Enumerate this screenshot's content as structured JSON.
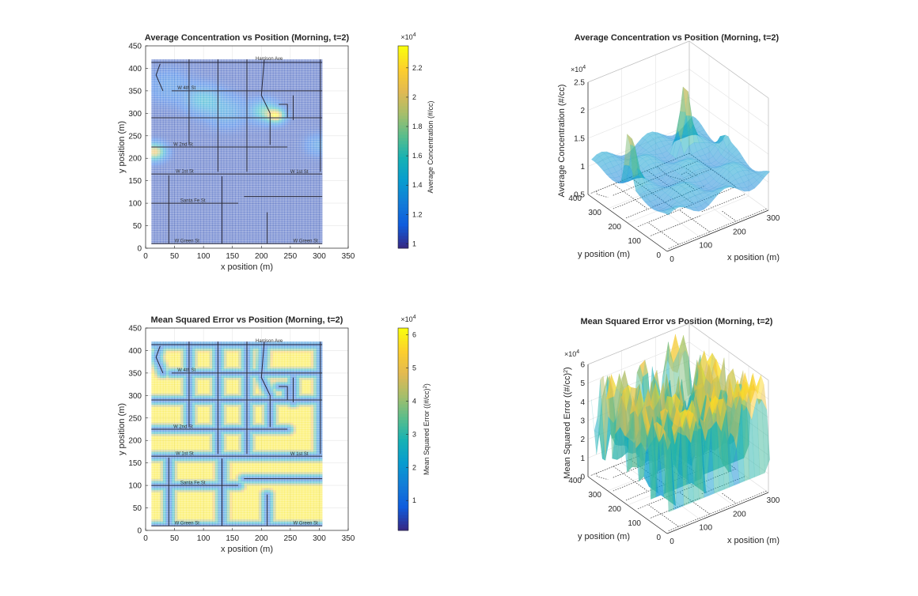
{
  "figure": {
    "background": "#ffffff"
  },
  "chart_data": [
    {
      "type": "heatmap",
      "id": "avg-heatmap",
      "title": "Average Concentration vs Position (Morning, t=2)",
      "xlabel": "x position (m)",
      "ylabel": "y position (m)",
      "xlim": [
        0,
        350
      ],
      "ylim": [
        0,
        450
      ],
      "xticks": [
        "0",
        "50",
        "100",
        "150",
        "200",
        "250",
        "300",
        "350"
      ],
      "yticks": [
        "0",
        "50",
        "100",
        "150",
        "200",
        "250",
        "300",
        "350",
        "400",
        "450"
      ],
      "colorbar": {
        "label": "Average Concentration (#/cc)",
        "multiplier": "×10",
        "multiplier_exp": "4",
        "range": [
          0.97,
          2.35
        ],
        "ticks": [
          "1",
          "1.2",
          "1.4",
          "1.6",
          "1.8",
          "2",
          "2.2"
        ],
        "tick_values": [
          1.0,
          1.2,
          1.4,
          1.6,
          1.8,
          2.0,
          2.2
        ]
      },
      "map_extent": {
        "x": [
          10,
          305
        ],
        "y": [
          10,
          420
        ]
      },
      "base_value": 1.05,
      "hotspots": [
        {
          "x": 225,
          "y": 295,
          "value": 2.2,
          "spread": 10
        },
        {
          "x": 205,
          "y": 305,
          "value": 1.65,
          "spread": 15
        },
        {
          "x": 15,
          "y": 215,
          "value": 2.1,
          "spread": 12
        },
        {
          "x": 100,
          "y": 330,
          "value": 1.45,
          "spread": 20
        },
        {
          "x": 140,
          "y": 305,
          "value": 1.3,
          "spread": 22
        },
        {
          "x": 40,
          "y": 360,
          "value": 1.2,
          "spread": 25
        },
        {
          "x": 300,
          "y": 230,
          "value": 1.25,
          "spread": 15
        }
      ],
      "street_labels": [
        "Harrison Ave",
        "W 4th St",
        "W 2nd St",
        "W 1st St",
        "W 1st St",
        "Santa Fe St",
        "W Green St",
        "W Green St"
      ]
    },
    {
      "type": "heatmap",
      "id": "mse-heatmap",
      "title": "Mean Squared Error vs Position (Morning, t=2)",
      "xlabel": "x position (m)",
      "ylabel": "y position (m)",
      "xlim": [
        0,
        350
      ],
      "ylim": [
        0,
        450
      ],
      "xticks": [
        "0",
        "50",
        "100",
        "150",
        "200",
        "250",
        "300",
        "350"
      ],
      "yticks": [
        "0",
        "50",
        "100",
        "150",
        "200",
        "250",
        "300",
        "350",
        "400",
        "450"
      ],
      "colorbar": {
        "label": "Mean Squared Error ((#/cc)",
        "label_sup": "2",
        "label_end": ")",
        "multiplier": "×10",
        "multiplier_exp": "4",
        "range": [
          0.1,
          6.2
        ],
        "ticks": [
          "1",
          "2",
          "3",
          "4",
          "5",
          "6"
        ],
        "tick_values": [
          1,
          2,
          3,
          4,
          5,
          6
        ]
      },
      "map_extent": {
        "x": [
          10,
          305
        ],
        "y": [
          10,
          420
        ]
      },
      "high_value": 5.9,
      "road_value": 1.0,
      "street_labels": [
        "Harrison Ave",
        "W 4th St",
        "W 2nd St",
        "W 1st St",
        "W 1st St",
        "Santa Fe St",
        "W Green St",
        "W Green St"
      ]
    },
    {
      "type": "surface3d",
      "id": "avg-surface",
      "title": "Average Concentration vs Position (Morning, t=2)",
      "xlabel": "x position (m)",
      "ylabel": "y position (m)",
      "zlabel": "Average Concentration (#/cc)",
      "z_multiplier": "×10",
      "z_multiplier_exp": "4",
      "xlim": [
        0,
        300
      ],
      "ylim": [
        0,
        400
      ],
      "zlim": [
        0.5,
        2.5
      ],
      "xticks": [
        "0",
        "100",
        "200",
        "300"
      ],
      "yticks": [
        "0",
        "100",
        "200",
        "300",
        "400"
      ],
      "zticks": [
        "0.5",
        "1",
        "1.5",
        "2",
        "2.5"
      ],
      "base_value": 1.05,
      "peaks": [
        {
          "x": 225,
          "y": 295,
          "value": 2.2
        },
        {
          "x": 15,
          "y": 215,
          "value": 2.1
        },
        {
          "x": 300,
          "y": 230,
          "value": 1.25
        }
      ]
    },
    {
      "type": "surface3d",
      "id": "mse-surface",
      "title": "Mean Squared Error vs Position (Morning, t=2)",
      "xlabel": "x position (m)",
      "ylabel": "y position (m)",
      "zlabel": "Mean Squared Error ((#/cc)",
      "zlabel_sup": "2",
      "zlabel_end": ")",
      "z_multiplier": "×10",
      "z_multiplier_exp": "4",
      "xlim": [
        0,
        300
      ],
      "ylim": [
        0,
        400
      ],
      "zlim": [
        0,
        6
      ],
      "xticks": [
        "0",
        "100",
        "200",
        "300"
      ],
      "yticks": [
        "0",
        "100",
        "200",
        "300",
        "400"
      ],
      "zticks": [
        "0",
        "1",
        "2",
        "3",
        "4",
        "5",
        "6"
      ],
      "high_value": 5.9,
      "road_value": 1.0
    }
  ]
}
